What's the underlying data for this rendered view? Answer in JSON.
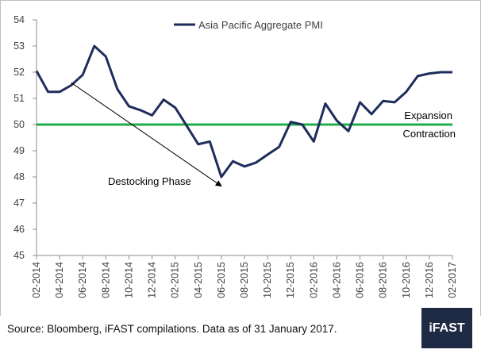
{
  "chart_data": {
    "type": "line",
    "title": "",
    "xlabel": "",
    "ylabel": "",
    "ylim": [
      45,
      54
    ],
    "y_ticks": [
      45,
      46,
      47,
      48,
      49,
      50,
      51,
      52,
      53,
      54
    ],
    "x_tick_labels": [
      "02-2014",
      "04-2014",
      "06-2014",
      "08-2014",
      "10-2014",
      "12-2014",
      "02-2015",
      "04-2015",
      "06-2015",
      "08-2015",
      "10-2015",
      "12-2015",
      "02-2016",
      "04-2016",
      "06-2016",
      "08-2016",
      "10-2016",
      "12-2016",
      "02-2017"
    ],
    "grid": false,
    "legend_position": "top-center",
    "series": [
      {
        "name": "Asia Pacific Aggregate PMI",
        "color": "#1f2d5c",
        "x": [
          "02-2014",
          "03-2014",
          "04-2014",
          "05-2014",
          "06-2014",
          "07-2014",
          "08-2014",
          "09-2014",
          "10-2014",
          "11-2014",
          "12-2014",
          "01-2015",
          "02-2015",
          "03-2015",
          "04-2015",
          "05-2015",
          "06-2015",
          "07-2015",
          "08-2015",
          "09-2015",
          "10-2015",
          "11-2015",
          "12-2015",
          "01-2016",
          "02-2016",
          "03-2016",
          "04-2016",
          "05-2016",
          "06-2016",
          "07-2016",
          "08-2016",
          "09-2016",
          "10-2016",
          "11-2016",
          "12-2016",
          "01-2017",
          "02-2017"
        ],
        "values": [
          52.05,
          51.25,
          51.25,
          51.5,
          51.9,
          53.0,
          52.6,
          51.35,
          50.7,
          50.55,
          50.35,
          50.95,
          50.65,
          49.95,
          49.25,
          49.35,
          48.0,
          48.6,
          48.4,
          48.55,
          48.85,
          49.15,
          50.1,
          50.0,
          49.35,
          50.8,
          50.15,
          49.75,
          50.85,
          50.4,
          50.9,
          50.85,
          51.25,
          51.85,
          51.95,
          52.0,
          52.0
        ]
      }
    ],
    "reference_line": {
      "value": 50,
      "color": "#1fae4b",
      "label_above": "Expansion",
      "label_below": "Contraction"
    },
    "annotation": {
      "text": "Destocking Phase",
      "from": {
        "x": "05-2014",
        "y": 51.6
      },
      "to": {
        "x": "06-2015",
        "y": 47.65
      }
    }
  },
  "footer": {
    "source": "Source: Bloomberg, iFAST compilations. Data as of 31 January 2017.",
    "logo": "iFAST"
  }
}
